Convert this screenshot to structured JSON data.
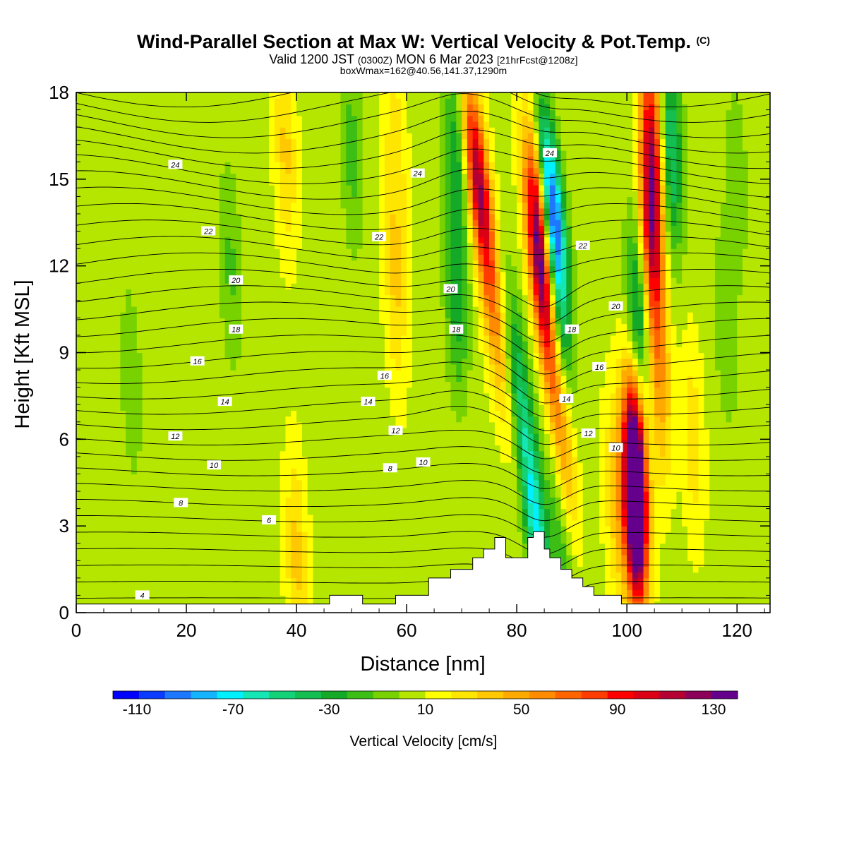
{
  "header": {
    "title": "Wind-Parallel Section at Max W: Vertical Velocity & Pot.Temp.",
    "title_mark": "(C)",
    "valid_a": "Valid 1200 JST",
    "valid_b": "(0300Z)",
    "valid_c": "MON 6 Mar 2023",
    "valid_d": "[21hrFcst@1208z]",
    "note": "boxWmax=162@40.56,141.37,1290m"
  },
  "chart_data": {
    "type": "heatmap",
    "xlabel": "Distance [nm]",
    "ylabel": "Height [Kft MSL]",
    "xlim": [
      0,
      126
    ],
    "ylim": [
      0,
      18
    ],
    "x_ticks": [
      "0",
      "20",
      "40",
      "60",
      "80",
      "100",
      "120"
    ],
    "y_ticks": [
      "0",
      "3",
      "6",
      "9",
      "12",
      "15",
      "18"
    ],
    "colorbar": {
      "label": "Vertical Velocity [cm/s]",
      "tick_labels": [
        "-110",
        "-70",
        "-30",
        "10",
        "50",
        "90",
        "130"
      ],
      "tick_values": [
        -110,
        -70,
        -30,
        10,
        50,
        90,
        130
      ],
      "range": [
        -120,
        140
      ],
      "colors": [
        "#0000ff",
        "#0a3cff",
        "#1e78ff",
        "#14b4ff",
        "#00f0ff",
        "#14e6b4",
        "#14d278",
        "#14be50",
        "#14aa28",
        "#3cbe14",
        "#78d200",
        "#b4e600",
        "#ffff00",
        "#ffe600",
        "#ffc800",
        "#ffaa00",
        "#ff8c00",
        "#ff6400",
        "#ff3c00",
        "#ff0000",
        "#dc0014",
        "#b40032",
        "#8c005a",
        "#64008c"
      ]
    },
    "features": [
      {
        "x": 73,
        "z": 15,
        "w": 110
      },
      {
        "x": 76,
        "z": 10,
        "w": 42
      },
      {
        "x": 84.5,
        "z": 11.5,
        "w": 108
      },
      {
        "x": 84.5,
        "z": 13.5,
        "w": 90
      },
      {
        "x": 86.5,
        "z": 14,
        "w": -112
      },
      {
        "x": 86.5,
        "z": 11,
        "w": -72
      },
      {
        "x": 88,
        "z": 6.5,
        "w": 48
      },
      {
        "x": 83.5,
        "z": 3,
        "w": -70
      },
      {
        "x": 80.5,
        "z": 8,
        "w": -42
      },
      {
        "x": 69,
        "z": 11,
        "w": -35
      },
      {
        "x": 69,
        "z": 16,
        "w": -35
      },
      {
        "x": 101.5,
        "z": 3.5,
        "w": 142
      },
      {
        "x": 101.5,
        "z": 5.5,
        "w": 95
      },
      {
        "x": 104.5,
        "z": 13,
        "w": 92
      },
      {
        "x": 104.5,
        "z": 16.5,
        "w": 78
      },
      {
        "x": 106,
        "z": 8,
        "w": 42
      },
      {
        "x": 102,
        "z": 10,
        "w": -58
      },
      {
        "x": 108,
        "z": 16,
        "w": -55
      },
      {
        "x": 98,
        "z": 4,
        "w": 32
      },
      {
        "x": 88,
        "z": 2.2,
        "w": -25
      },
      {
        "x": 112,
        "z": 6,
        "w": 22
      },
      {
        "x": 38,
        "z": 16,
        "w": 28
      },
      {
        "x": 40,
        "z": 2,
        "w": 30
      },
      {
        "x": 58,
        "z": 11,
        "w": 25
      },
      {
        "x": 58,
        "z": 16,
        "w": 22
      },
      {
        "x": 50,
        "z": 16,
        "w": -22
      },
      {
        "x": 28,
        "z": 12,
        "w": -20
      },
      {
        "x": 10,
        "z": 8,
        "w": -15
      },
      {
        "x": 118,
        "z": 10,
        "w": -18
      },
      {
        "x": 120,
        "z": 15,
        "w": -15
      }
    ],
    "terrain": [
      [
        0,
        0.3
      ],
      [
        5,
        0.3
      ],
      [
        46,
        0.3
      ],
      [
        46,
        0.6
      ],
      [
        52,
        0.6
      ],
      [
        52,
        0.3
      ],
      [
        58,
        0.3
      ],
      [
        58,
        0.6
      ],
      [
        64,
        0.6
      ],
      [
        64,
        1.2
      ],
      [
        68,
        1.2
      ],
      [
        68,
        1.5
      ],
      [
        72,
        1.5
      ],
      [
        72,
        1.9
      ],
      [
        74,
        1.9
      ],
      [
        74,
        2.2
      ],
      [
        76,
        2.2
      ],
      [
        76,
        2.6
      ],
      [
        78,
        2.6
      ],
      [
        78,
        1.9
      ],
      [
        82,
        1.9
      ],
      [
        82,
        2.6
      ],
      [
        83,
        2.6
      ],
      [
        83,
        2.8
      ],
      [
        85,
        2.8
      ],
      [
        85,
        2.2
      ],
      [
        86,
        2.2
      ],
      [
        86,
        1.9
      ],
      [
        88,
        1.9
      ],
      [
        88,
        1.5
      ],
      [
        90,
        1.5
      ],
      [
        90,
        1.2
      ],
      [
        92,
        1.2
      ],
      [
        92,
        0.9
      ],
      [
        94,
        0.9
      ],
      [
        94,
        0.6
      ],
      [
        99,
        0.6
      ],
      [
        99,
        0.3
      ],
      [
        126,
        0.3
      ]
    ],
    "isentrope_labels": [
      {
        "x": 18,
        "z": 15.5,
        "t": "24"
      },
      {
        "x": 62,
        "z": 15.2,
        "t": "24"
      },
      {
        "x": 86,
        "z": 15.9,
        "t": "24"
      },
      {
        "x": 24,
        "z": 13.2,
        "t": "22"
      },
      {
        "x": 55,
        "z": 13.0,
        "t": "22"
      },
      {
        "x": 92,
        "z": 12.7,
        "t": "22"
      },
      {
        "x": 29,
        "z": 11.5,
        "t": "20"
      },
      {
        "x": 68,
        "z": 11.2,
        "t": "20"
      },
      {
        "x": 98,
        "z": 10.6,
        "t": "20"
      },
      {
        "x": 29,
        "z": 9.8,
        "t": "18"
      },
      {
        "x": 69,
        "z": 9.8,
        "t": "18"
      },
      {
        "x": 90,
        "z": 9.8,
        "t": "18"
      },
      {
        "x": 22,
        "z": 8.7,
        "t": "16"
      },
      {
        "x": 56,
        "z": 8.2,
        "t": "16"
      },
      {
        "x": 95,
        "z": 8.5,
        "t": "16"
      },
      {
        "x": 27,
        "z": 7.3,
        "t": "14"
      },
      {
        "x": 53,
        "z": 7.3,
        "t": "14"
      },
      {
        "x": 89,
        "z": 7.4,
        "t": "14"
      },
      {
        "x": 18,
        "z": 6.1,
        "t": "12"
      },
      {
        "x": 58,
        "z": 6.3,
        "t": "12"
      },
      {
        "x": 93,
        "z": 6.2,
        "t": "12"
      },
      {
        "x": 25,
        "z": 5.1,
        "t": "10"
      },
      {
        "x": 63,
        "z": 5.2,
        "t": "10"
      },
      {
        "x": 98,
        "z": 5.7,
        "t": "10"
      },
      {
        "x": 19,
        "z": 3.8,
        "t": "8"
      },
      {
        "x": 57,
        "z": 5.0,
        "t": "8"
      },
      {
        "x": 35,
        "z": 3.2,
        "t": "6"
      },
      {
        "x": 12,
        "z": 0.6,
        "t": "4"
      }
    ]
  }
}
